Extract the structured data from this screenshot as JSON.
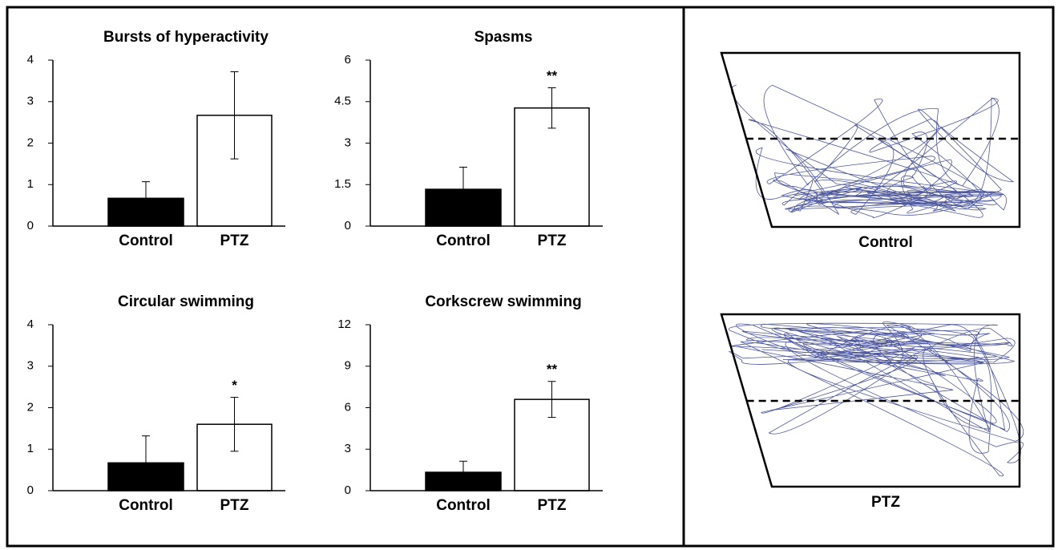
{
  "chart_data": [
    {
      "type": "bar",
      "title": "Bursts of hyperactivity",
      "categories": [
        "Control",
        "PTZ"
      ],
      "values": [
        0.67,
        2.67
      ],
      "errors": [
        0.4,
        1.05
      ],
      "colors": [
        "#000000",
        "#ffffff"
      ],
      "value_annotations": [
        null,
        null
      ],
      "ylim": [
        0,
        4
      ],
      "yticks": [
        0,
        1,
        2,
        3,
        4
      ]
    },
    {
      "type": "bar",
      "title": "Spasms",
      "categories": [
        "Control",
        "PTZ"
      ],
      "values": [
        1.33,
        4.27
      ],
      "errors": [
        0.8,
        0.73
      ],
      "colors": [
        "#000000",
        "#ffffff"
      ],
      "value_annotations": [
        null,
        "**"
      ],
      "ylim": [
        0,
        6
      ],
      "yticks": [
        0,
        1.5,
        3,
        4.5,
        6
      ]
    },
    {
      "type": "bar",
      "title": "Circular swimming",
      "categories": [
        "Control",
        "PTZ"
      ],
      "values": [
        0.67,
        1.6
      ],
      "errors": [
        0.65,
        0.65
      ],
      "colors": [
        "#000000",
        "#ffffff"
      ],
      "value_annotations": [
        null,
        "*"
      ],
      "ylim": [
        0,
        4
      ],
      "yticks": [
        0,
        1,
        2,
        3,
        4
      ]
    },
    {
      "type": "bar",
      "title": "Corkscrew swimming",
      "categories": [
        "Control",
        "PTZ"
      ],
      "values": [
        1.33,
        6.6
      ],
      "errors": [
        0.8,
        1.3
      ],
      "colors": [
        "#000000",
        "#ffffff"
      ],
      "value_annotations": [
        null,
        "**"
      ],
      "ylim": [
        0,
        12
      ],
      "yticks": [
        0,
        3,
        6,
        9,
        12
      ]
    }
  ],
  "tanks": [
    {
      "label": "Control"
    },
    {
      "label": "PTZ"
    }
  ]
}
